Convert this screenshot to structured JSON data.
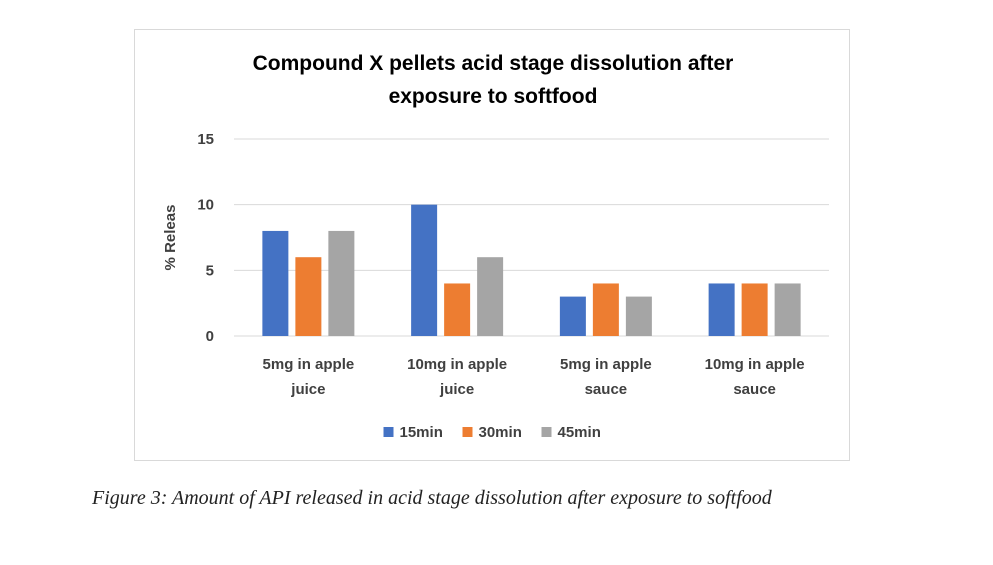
{
  "chart_data": {
    "type": "bar",
    "title": [
      "Compound X pellets acid stage dissolution after",
      "exposure to softfood"
    ],
    "xlabel": "",
    "ylabel": "% Releas",
    "ylim": [
      0,
      15
    ],
    "yticks": [
      0,
      5,
      10,
      15
    ],
    "grid": true,
    "legend_position": "bottom",
    "categories": [
      [
        "5mg in apple",
        "juice"
      ],
      [
        "10mg in apple",
        "juice"
      ],
      [
        "5mg in apple",
        "sauce"
      ],
      [
        "10mg in apple",
        "sauce"
      ]
    ],
    "series": [
      {
        "name": "15min",
        "color": "#4472C4",
        "values": [
          8,
          10,
          3,
          4
        ]
      },
      {
        "name": "30min",
        "color": "#ED7D31",
        "values": [
          6,
          4,
          4,
          4
        ]
      },
      {
        "name": "45min",
        "color": "#A5A5A5",
        "values": [
          8,
          6,
          3,
          4
        ]
      }
    ]
  },
  "caption": "Figure 3: Amount of API released in acid stage dissolution after exposure to softfood"
}
